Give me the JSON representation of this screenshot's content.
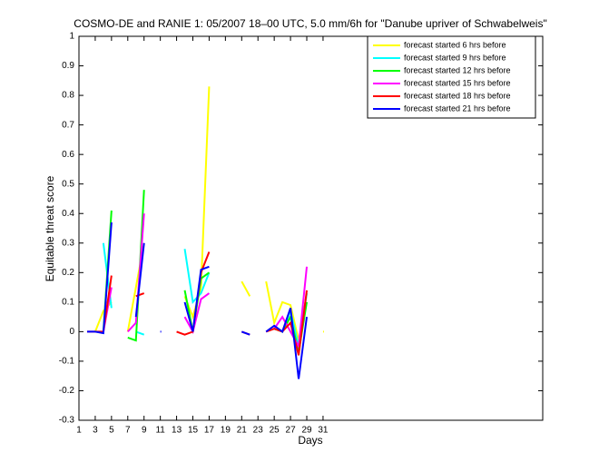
{
  "chart_data": {
    "type": "line",
    "title": "COSMO-DE and RANIE 1: 05/2007 18–00 UTC, 5.0 mm/6h for \"Danube upriver of Schwabelweis\"",
    "xlabel": "Days",
    "ylabel": "Equitable threat score",
    "x": [
      1,
      2,
      3,
      4,
      5,
      6,
      7,
      8,
      9,
      10,
      11,
      12,
      13,
      14,
      15,
      16,
      17,
      18,
      19,
      20,
      21,
      22,
      23,
      24,
      25,
      26,
      27,
      28,
      29,
      30,
      31
    ],
    "xlim": [
      1,
      58
    ],
    "xticks": [
      1,
      3,
      5,
      7,
      9,
      11,
      13,
      15,
      17,
      19,
      21,
      23,
      25,
      27,
      29,
      31
    ],
    "ylim": [
      -0.3,
      1
    ],
    "yticks": [
      -0.3,
      -0.2,
      -0.1,
      0,
      0.1,
      0.2,
      0.3,
      0.4,
      0.5,
      0.6,
      0.7,
      0.8,
      0.9,
      1
    ],
    "legend": "upper right",
    "series": [
      {
        "name": "forecast started 6 hrs before",
        "color": "#ffff00",
        "values": [
          null,
          null,
          0,
          0.07,
          0.1,
          null,
          0,
          0.15,
          0.3,
          null,
          null,
          null,
          null,
          0.12,
          0.05,
          0.15,
          0.83,
          null,
          null,
          null,
          0.17,
          0.12,
          null,
          0.17,
          0.03,
          0.1,
          0.09,
          -0.03,
          0.13,
          null,
          0
        ]
      },
      {
        "name": "forecast started 9 hrs before",
        "color": "#00ffff",
        "values": [
          null,
          null,
          null,
          0.3,
          0.08,
          null,
          null,
          0,
          -0.01,
          null,
          null,
          null,
          null,
          0.28,
          0.1,
          0.13,
          0.2,
          null,
          null,
          null,
          null,
          null,
          null,
          null,
          0.02,
          0,
          0.07,
          -0.05,
          0.13,
          null,
          null
        ]
      },
      {
        "name": "forecast started 12 hrs before",
        "color": "#00ff00",
        "values": [
          null,
          null,
          null,
          0,
          0.41,
          null,
          -0.02,
          -0.03,
          0.48,
          null,
          null,
          null,
          null,
          0.14,
          0,
          0.18,
          0.2,
          null,
          null,
          null,
          null,
          null,
          null,
          null,
          0.01,
          0,
          0.05,
          -0.07,
          0.1,
          null,
          null
        ]
      },
      {
        "name": "forecast started 15 hrs before",
        "color": "#ff00ff",
        "values": [
          null,
          null,
          null,
          0,
          0.15,
          null,
          0,
          0.03,
          0.4,
          null,
          null,
          null,
          null,
          0.05,
          0,
          0.11,
          0.13,
          null,
          null,
          null,
          null,
          null,
          null,
          null,
          0.01,
          0.05,
          0,
          -0.05,
          0.22,
          null,
          null
        ]
      },
      {
        "name": "forecast started 18 hrs before",
        "color": "#ff0000",
        "values": [
          null,
          0,
          0,
          0,
          0.19,
          null,
          null,
          0.12,
          0.13,
          null,
          null,
          null,
          0,
          -0.01,
          0,
          0.2,
          0.27,
          null,
          null,
          null,
          0,
          -0.01,
          null,
          0,
          0.01,
          0,
          0.03,
          -0.08,
          0.14,
          null,
          null
        ]
      },
      {
        "name": "forecast started 21 hrs before",
        "color": "#0000ff",
        "values": [
          null,
          0,
          0,
          -0.005,
          0.37,
          null,
          null,
          0.05,
          0.3,
          null,
          0,
          null,
          null,
          0.1,
          0,
          0.21,
          0.22,
          null,
          null,
          null,
          0,
          -0.01,
          null,
          0,
          0.02,
          0,
          0.08,
          -0.16,
          0.05,
          null,
          null
        ]
      }
    ]
  }
}
